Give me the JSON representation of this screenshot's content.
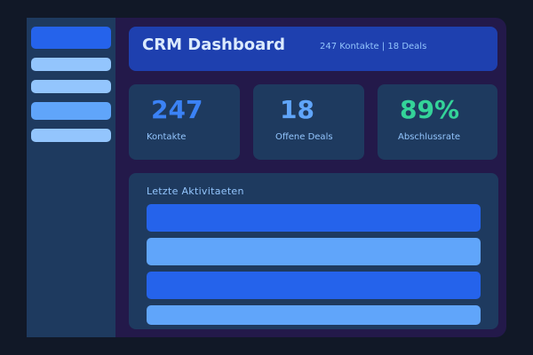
{
  "sidebar": {
    "items": [
      {
        "color": "#2563eb",
        "active": true
      },
      {
        "color": "#93c5fd"
      },
      {
        "color": "#93c5fd"
      },
      {
        "color": "#60a5fa"
      },
      {
        "color": "#93c5fd"
      }
    ]
  },
  "header": {
    "title": "CRM Dashboard",
    "summary": "247 Kontakte | 18 Deals"
  },
  "stats": [
    {
      "value": "247",
      "label": "Kontakte",
      "color": "#3b82f6"
    },
    {
      "value": "18",
      "label": "Offene Deals",
      "color": "#60a5fa"
    },
    {
      "value": "89%",
      "label": "Abschlussrate",
      "color": "#34d399"
    }
  ],
  "activities": {
    "title": "Letzte Aktivitaeten",
    "rows": [
      {
        "color": "#2563eb"
      },
      {
        "color": "#60a5fa"
      },
      {
        "color": "#2563eb"
      },
      {
        "color": "#60a5fa"
      }
    ]
  }
}
